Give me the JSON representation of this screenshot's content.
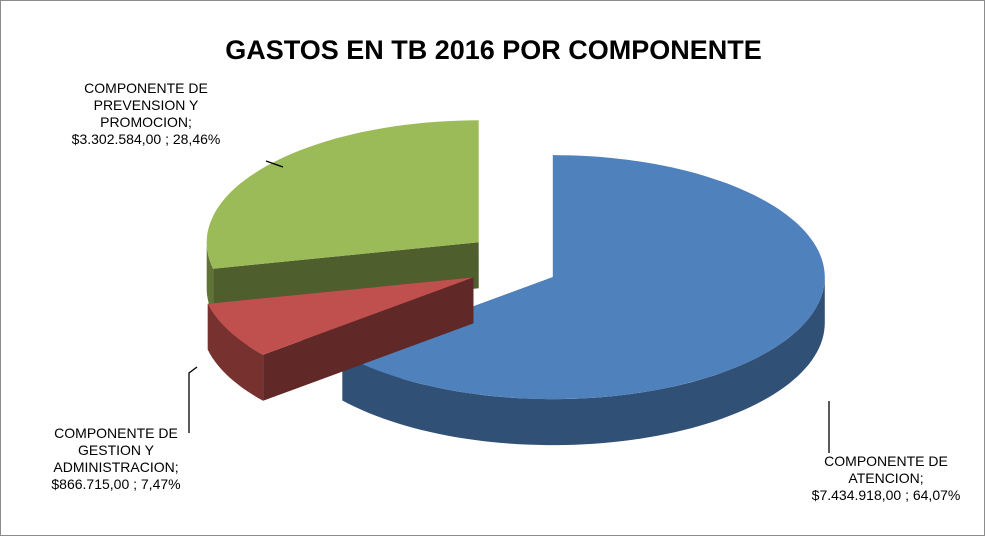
{
  "chart_data": {
    "type": "pie3d",
    "title": "GASTOS EN TB 2016 POR COMPONENTE",
    "categories": [
      "COMPONENTE DE ATENCION",
      "COMPONENTE DE GESTION Y ADMINISTRACION",
      "COMPONENTE DE PREVENSION Y PROMOCION"
    ],
    "values": [
      7434918,
      866715,
      3302584
    ],
    "value_labels": [
      "COMPONENTE DE\nATENCION;\n$7.434.918,00 ; 64,07%",
      "COMPONENTE DE\nGESTION Y\nADMINISTRACION;\n$866.715,00 ; 7,47%",
      "COMPONENTE DE\nPREVENSION Y\nPROMOCION;\n$3.302.584,00 ; 28,46%"
    ],
    "colors": [
      "#4f81bd",
      "#c0504d",
      "#9bbb59"
    ]
  }
}
